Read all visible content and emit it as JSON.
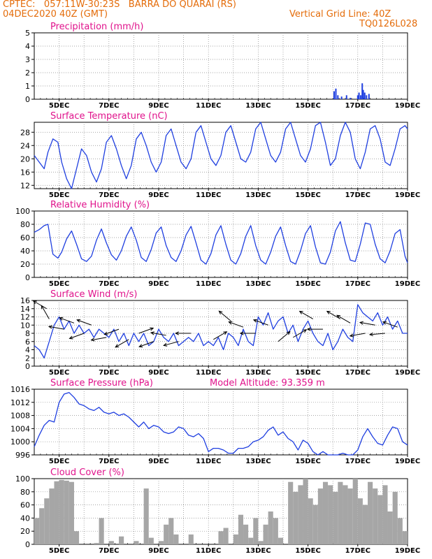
{
  "header": {
    "line1": "CPTEC:   057:11W-30:23S   BARRA DO QUARAI (RS)",
    "line2": "04DEC2020 40Z (GMT)",
    "grid_note": "Vertical Grid Line: 40Z",
    "code": "TQ0126L028"
  },
  "colors": {
    "header": "#e46c0a",
    "title": "#e0138c",
    "series": "#1f3fe0",
    "bars": "#a6a6a6",
    "arrows": "#000000"
  },
  "chart_data": [
    {
      "id": "precip",
      "type": "bar",
      "title": "Precipitation  (mm/h)",
      "ylim": [
        0,
        5
      ],
      "yticks": [
        0,
        1,
        2,
        3,
        4,
        5
      ],
      "xlim": [
        4.0,
        19.0
      ],
      "xticks": [
        "5DEC",
        "7DEC",
        "9DEC",
        "11DEC",
        "13DEC",
        "15DEC",
        "17DEC",
        "19DEC"
      ],
      "grid": true,
      "x": [
        16.05,
        16.12,
        16.2,
        16.35,
        16.55,
        16.7,
        17.0,
        17.05,
        17.12,
        17.18,
        17.22,
        17.28,
        17.35,
        17.45
      ],
      "values": [
        0.6,
        0.8,
        0.3,
        0.2,
        0.3,
        0.1,
        0.3,
        0.5,
        0.3,
        1.2,
        0.7,
        0.5,
        0.3,
        0.4
      ]
    },
    {
      "id": "temperature",
      "type": "line",
      "title": "Surface Temperature  (nC)",
      "ylim": [
        11,
        31
      ],
      "yticks": [
        12,
        16,
        20,
        24,
        28
      ],
      "xlim": [
        4.0,
        19.0
      ],
      "xticks": [
        "5DEC",
        "7DEC",
        "9DEC",
        "11DEC",
        "13DEC",
        "15DEC",
        "17DEC",
        "19DEC"
      ],
      "grid": true,
      "x": [
        4.0,
        4.2,
        4.4,
        4.55,
        4.75,
        4.95,
        5.1,
        5.3,
        5.5,
        5.7,
        5.9,
        6.1,
        6.3,
        6.5,
        6.7,
        6.9,
        7.1,
        7.3,
        7.5,
        7.7,
        7.9,
        8.1,
        8.3,
        8.5,
        8.7,
        8.9,
        9.1,
        9.3,
        9.5,
        9.7,
        9.9,
        10.1,
        10.3,
        10.5,
        10.7,
        10.9,
        11.1,
        11.3,
        11.5,
        11.7,
        11.9,
        12.1,
        12.3,
        12.5,
        12.7,
        12.9,
        13.1,
        13.3,
        13.5,
        13.7,
        13.9,
        14.1,
        14.3,
        14.5,
        14.7,
        14.9,
        15.1,
        15.3,
        15.5,
        15.7,
        15.9,
        16.1,
        16.3,
        16.5,
        16.7,
        16.9,
        17.1,
        17.3,
        17.5,
        17.7,
        17.9,
        18.1,
        18.3,
        18.5,
        18.7,
        18.9,
        19.0
      ],
      "values": [
        21,
        19,
        17,
        22,
        26,
        25,
        19,
        14,
        11,
        17,
        23,
        21,
        16,
        13,
        17,
        25,
        27,
        23,
        18,
        14,
        18,
        26,
        28,
        24,
        19,
        16,
        19,
        27,
        29,
        24,
        19,
        17,
        20,
        28,
        30,
        25,
        20,
        18,
        21,
        28,
        30,
        25,
        20,
        19,
        22,
        29,
        31,
        26,
        21,
        19,
        22,
        29,
        31,
        26,
        21,
        19,
        23,
        30,
        31,
        25,
        18,
        20,
        27,
        31,
        28,
        20,
        17,
        22,
        29,
        30,
        26,
        19,
        18,
        23,
        29,
        30,
        29
      ]
    },
    {
      "id": "humidity",
      "type": "line",
      "title": "Relative Humidity  (%)",
      "ylim": [
        0,
        100
      ],
      "yticks": [
        0,
        20,
        40,
        60,
        80,
        100
      ],
      "xlim": [
        4.0,
        19.0
      ],
      "xticks": [
        "5DEC",
        "7DEC",
        "9DEC",
        "11DEC",
        "13DEC",
        "15DEC",
        "17DEC",
        "19DEC"
      ],
      "grid": true,
      "x": [
        4.0,
        4.2,
        4.4,
        4.55,
        4.75,
        4.95,
        5.1,
        5.3,
        5.5,
        5.7,
        5.9,
        6.1,
        6.3,
        6.5,
        6.7,
        6.9,
        7.1,
        7.3,
        7.5,
        7.7,
        7.9,
        8.1,
        8.3,
        8.5,
        8.7,
        8.9,
        9.1,
        9.3,
        9.5,
        9.7,
        9.9,
        10.1,
        10.3,
        10.5,
        10.7,
        10.9,
        11.1,
        11.3,
        11.5,
        11.7,
        11.9,
        12.1,
        12.3,
        12.5,
        12.7,
        12.9,
        13.1,
        13.3,
        13.5,
        13.7,
        13.9,
        14.1,
        14.3,
        14.5,
        14.7,
        14.9,
        15.1,
        15.3,
        15.5,
        15.7,
        15.9,
        16.1,
        16.3,
        16.5,
        16.7,
        16.9,
        17.1,
        17.3,
        17.5,
        17.7,
        17.9,
        18.1,
        18.3,
        18.5,
        18.7,
        18.9,
        19.0
      ],
      "values": [
        68,
        72,
        78,
        80,
        35,
        29,
        38,
        58,
        70,
        50,
        28,
        24,
        32,
        56,
        73,
        52,
        34,
        26,
        40,
        62,
        76,
        56,
        30,
        24,
        42,
        67,
        76,
        48,
        30,
        24,
        40,
        64,
        77,
        52,
        26,
        20,
        36,
        64,
        78,
        50,
        26,
        20,
        36,
        62,
        78,
        48,
        26,
        20,
        38,
        62,
        76,
        48,
        24,
        20,
        40,
        66,
        78,
        46,
        22,
        20,
        38,
        70,
        84,
        52,
        26,
        24,
        50,
        82,
        80,
        50,
        28,
        22,
        40,
        66,
        72,
        32,
        22
      ]
    },
    {
      "id": "wind",
      "type": "line",
      "title": "Surface Wind  (m/s)",
      "ylim": [
        0,
        16
      ],
      "yticks": [
        0,
        2,
        4,
        6,
        8,
        10,
        12,
        14,
        16
      ],
      "xlim": [
        4.0,
        19.0
      ],
      "xticks": [
        "5DEC",
        "7DEC",
        "9DEC",
        "11DEC",
        "13DEC",
        "15DEC",
        "17DEC",
        "19DEC"
      ],
      "grid": true,
      "x": [
        4.0,
        4.2,
        4.4,
        4.6,
        4.8,
        5.0,
        5.2,
        5.4,
        5.6,
        5.8,
        6.0,
        6.2,
        6.4,
        6.6,
        6.8,
        7.0,
        7.2,
        7.4,
        7.6,
        7.8,
        8.0,
        8.2,
        8.4,
        8.6,
        8.8,
        9.0,
        9.2,
        9.4,
        9.6,
        9.8,
        10.0,
        10.2,
        10.4,
        10.6,
        10.8,
        11.0,
        11.2,
        11.4,
        11.6,
        11.8,
        12.0,
        12.2,
        12.4,
        12.6,
        12.8,
        13.0,
        13.2,
        13.4,
        13.6,
        13.8,
        14.0,
        14.2,
        14.4,
        14.6,
        14.8,
        15.0,
        15.2,
        15.4,
        15.6,
        15.8,
        16.0,
        16.2,
        16.4,
        16.6,
        16.8,
        17.0,
        17.2,
        17.4,
        17.6,
        17.8,
        18.0,
        18.2,
        18.4,
        18.6,
        18.8,
        19.0
      ],
      "values": [
        5,
        4,
        2,
        6,
        10,
        12,
        9,
        11,
        8,
        10,
        8,
        9,
        7,
        9,
        8,
        7,
        9,
        6,
        8,
        5,
        8,
        6,
        8,
        5,
        6,
        9,
        7,
        6,
        8,
        5,
        6,
        7,
        6,
        8,
        5,
        6,
        5,
        7,
        4,
        8,
        7,
        5,
        9,
        6,
        5,
        12,
        10,
        13,
        9,
        11,
        12,
        8,
        10,
        6,
        9,
        11,
        8,
        6,
        5,
        8,
        4,
        6,
        9,
        7,
        6,
        15,
        13,
        12,
        11,
        13,
        10,
        12,
        9,
        11,
        8,
        8
      ]
    },
    {
      "id": "pressure",
      "type": "line",
      "title": "Surface Pressure  (hPa)",
      "ylim": [
        996,
        1016
      ],
      "yticks": [
        996,
        1000,
        1004,
        1008,
        1012,
        1016
      ],
      "xlim": [
        4.0,
        19.0
      ],
      "xticks": [
        "5DEC",
        "7DEC",
        "9DEC",
        "11DEC",
        "13DEC",
        "15DEC",
        "17DEC",
        "19DEC"
      ],
      "grid": true,
      "x": [
        4.0,
        4.2,
        4.4,
        4.6,
        4.8,
        5.0,
        5.2,
        5.4,
        5.6,
        5.8,
        6.0,
        6.2,
        6.4,
        6.6,
        6.8,
        7.0,
        7.2,
        7.4,
        7.6,
        7.8,
        8.0,
        8.2,
        8.4,
        8.6,
        8.8,
        9.0,
        9.2,
        9.4,
        9.6,
        9.8,
        10.0,
        10.2,
        10.4,
        10.6,
        10.8,
        11.0,
        11.2,
        11.4,
        11.6,
        11.8,
        12.0,
        12.2,
        12.4,
        12.6,
        12.8,
        13.0,
        13.2,
        13.4,
        13.6,
        13.8,
        14.0,
        14.2,
        14.4,
        14.6,
        14.8,
        15.0,
        15.2,
        15.4,
        15.6,
        15.8,
        16.0,
        16.2,
        16.4,
        16.6,
        16.8,
        17.0,
        17.2,
        17.4,
        17.6,
        17.8,
        18.0,
        18.2,
        18.4,
        18.6,
        18.8,
        19.0
      ],
      "values": [
        998.5,
        1002,
        1005,
        1006.5,
        1006,
        1012,
        1014.5,
        1015,
        1013.5,
        1011.5,
        1011,
        1010,
        1009.5,
        1010.5,
        1009,
        1008.5,
        1009,
        1008,
        1008.5,
        1007.5,
        1006,
        1004.5,
        1006,
        1004,
        1005,
        1004.5,
        1003,
        1002.5,
        1003,
        1004.5,
        1004,
        1002,
        1001.5,
        1002.5,
        1001,
        997,
        998,
        998,
        997.5,
        996.5,
        996.5,
        998,
        998,
        998.5,
        1000,
        1000.5,
        1001.5,
        1003.5,
        1004.5,
        1002,
        1003,
        1001,
        1000,
        997.5,
        1000.5,
        999.5,
        997,
        996,
        997,
        995.5,
        995,
        996,
        996.5,
        995.5,
        996,
        997.5,
        1001.5,
        1004,
        1001.5,
        999.5,
        999,
        1002,
        1004.5,
        1004,
        1000,
        999
      ]
    },
    {
      "id": "cloud",
      "type": "bar",
      "title": "Cloud Cover  (%)",
      "ylim": [
        0,
        100
      ],
      "yticks": [
        0,
        20,
        40,
        60,
        80,
        100
      ],
      "xlim": [
        4.0,
        19.0
      ],
      "xticks": [
        "5DEC",
        "7DEC",
        "9DEC",
        "11DEC",
        "13DEC",
        "15DEC",
        "17DEC",
        "19DEC"
      ],
      "grid": true,
      "x": [
        4.1,
        4.3,
        4.5,
        4.7,
        4.9,
        5.1,
        5.3,
        5.5,
        5.7,
        5.9,
        6.1,
        6.3,
        6.5,
        6.7,
        6.9,
        7.1,
        7.3,
        7.5,
        7.7,
        7.9,
        8.1,
        8.3,
        8.5,
        8.7,
        8.9,
        9.1,
        9.3,
        9.5,
        9.7,
        9.9,
        10.1,
        10.3,
        10.5,
        10.7,
        10.9,
        11.1,
        11.3,
        11.5,
        11.7,
        11.9,
        12.1,
        12.3,
        12.5,
        12.7,
        12.9,
        13.1,
        13.3,
        13.5,
        13.7,
        13.9,
        14.1,
        14.3,
        14.5,
        14.7,
        14.9,
        15.1,
        15.3,
        15.5,
        15.7,
        15.9,
        16.1,
        16.3,
        16.5,
        16.7,
        16.9,
        17.1,
        17.3,
        17.5,
        17.7,
        17.9,
        18.1,
        18.3,
        18.5,
        18.7,
        18.9
      ],
      "values": [
        40,
        55,
        70,
        85,
        96,
        98,
        97,
        95,
        20,
        0,
        0,
        0,
        2,
        40,
        0,
        5,
        0,
        12,
        0,
        0,
        5,
        0,
        85,
        10,
        0,
        5,
        30,
        40,
        15,
        0,
        0,
        15,
        0,
        0,
        0,
        0,
        0,
        20,
        25,
        0,
        15,
        45,
        30,
        10,
        40,
        5,
        30,
        50,
        40,
        10,
        0,
        95,
        80,
        90,
        100,
        70,
        60,
        85,
        95,
        90,
        80,
        95,
        90,
        85,
        100,
        70,
        60,
        95,
        85,
        75,
        90,
        50,
        80,
        40,
        20
      ]
    }
  ],
  "wind_vectors": {
    "note": "Arrows along the wind panel, given as [x (days), y (m/s), direction angle (deg, screen, 0 = east, counter-clockwise)]",
    "arrows": [
      [
        4.5,
        14.0,
        150
      ],
      [
        4.6,
        11.5,
        120
      ],
      [
        5.2,
        9.0,
        170
      ],
      [
        5.6,
        10.5,
        160
      ],
      [
        6.0,
        8.0,
        200
      ],
      [
        6.3,
        10.0,
        160
      ],
      [
        6.9,
        7.0,
        190
      ],
      [
        7.4,
        9.0,
        200
      ],
      [
        7.8,
        6.5,
        210
      ],
      [
        8.2,
        8.0,
        20
      ],
      [
        8.8,
        6.0,
        200
      ],
      [
        9.3,
        7.5,
        170
      ],
      [
        9.8,
        6.0,
        195
      ],
      [
        10.3,
        8.0,
        180
      ],
      [
        11.2,
        6.5,
        30
      ],
      [
        11.9,
        11.0,
        140
      ],
      [
        12.4,
        9.5,
        160
      ],
      [
        12.9,
        8.0,
        180
      ],
      [
        13.4,
        10.0,
        160
      ],
      [
        13.8,
        6.0,
        40
      ],
      [
        14.4,
        7.0,
        30
      ],
      [
        15.2,
        11.5,
        150
      ],
      [
        15.6,
        9.0,
        180
      ],
      [
        16.3,
        11.5,
        150
      ],
      [
        16.7,
        10.5,
        150
      ],
      [
        17.3,
        8.0,
        190
      ],
      [
        17.7,
        10.0,
        170
      ],
      [
        18.1,
        8.0,
        185
      ],
      [
        18.6,
        9.5,
        160
      ]
    ]
  },
  "annotations": {
    "model_altitude": "Model Altitude: 93.359 m"
  }
}
